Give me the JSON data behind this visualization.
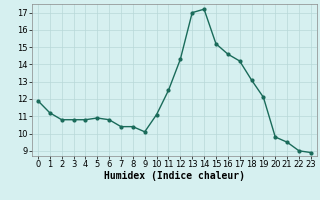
{
  "x": [
    0,
    1,
    2,
    3,
    4,
    5,
    6,
    7,
    8,
    9,
    10,
    11,
    12,
    13,
    14,
    15,
    16,
    17,
    18,
    19,
    20,
    21,
    22,
    23
  ],
  "y": [
    11.9,
    11.2,
    10.8,
    10.8,
    10.8,
    10.9,
    10.8,
    10.4,
    10.4,
    10.1,
    11.1,
    12.5,
    14.3,
    17.0,
    17.2,
    15.2,
    14.6,
    14.2,
    13.1,
    12.1,
    9.8,
    9.5,
    9.0,
    8.9
  ],
  "line_color": "#1a6b5a",
  "marker": "o",
  "markersize": 2.0,
  "linewidth": 1.0,
  "background_color": "#d6f0f0",
  "grid_color": "#b8d8d8",
  "xlabel": "Humidex (Indice chaleur)",
  "xlabel_fontsize": 7,
  "tick_fontsize": 6,
  "xlim": [
    -0.5,
    23.5
  ],
  "ylim": [
    8.7,
    17.5
  ],
  "yticks": [
    9,
    10,
    11,
    12,
    13,
    14,
    15,
    16,
    17
  ],
  "xticks": [
    0,
    1,
    2,
    3,
    4,
    5,
    6,
    7,
    8,
    9,
    10,
    11,
    12,
    13,
    14,
    15,
    16,
    17,
    18,
    19,
    20,
    21,
    22,
    23
  ]
}
